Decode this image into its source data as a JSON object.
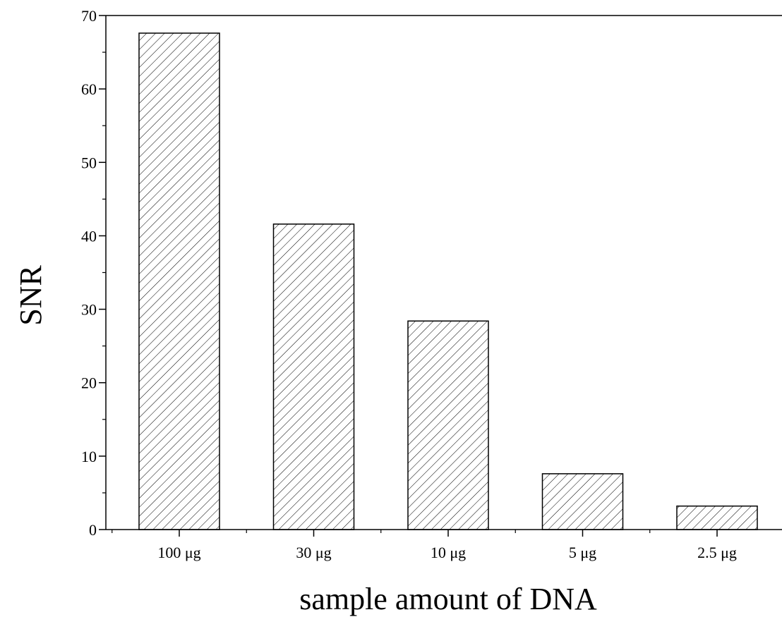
{
  "chart_data": {
    "type": "bar",
    "title": "",
    "xlabel": "sample amount of DNA",
    "ylabel": "SNR",
    "categories": [
      "100 μg",
      "30 μg",
      "10 μg",
      "5 μg",
      "2.5 μg"
    ],
    "values": [
      67.6,
      41.6,
      28.4,
      7.6,
      3.2
    ],
    "ylim": [
      0,
      70
    ],
    "yticks": [
      0,
      10,
      20,
      30,
      40,
      50,
      60,
      70
    ],
    "y_minor_step": 5,
    "grid": false,
    "legend": "none",
    "bar_fill": "hatched",
    "bar_color": "#000000",
    "background": "#ffffff"
  }
}
